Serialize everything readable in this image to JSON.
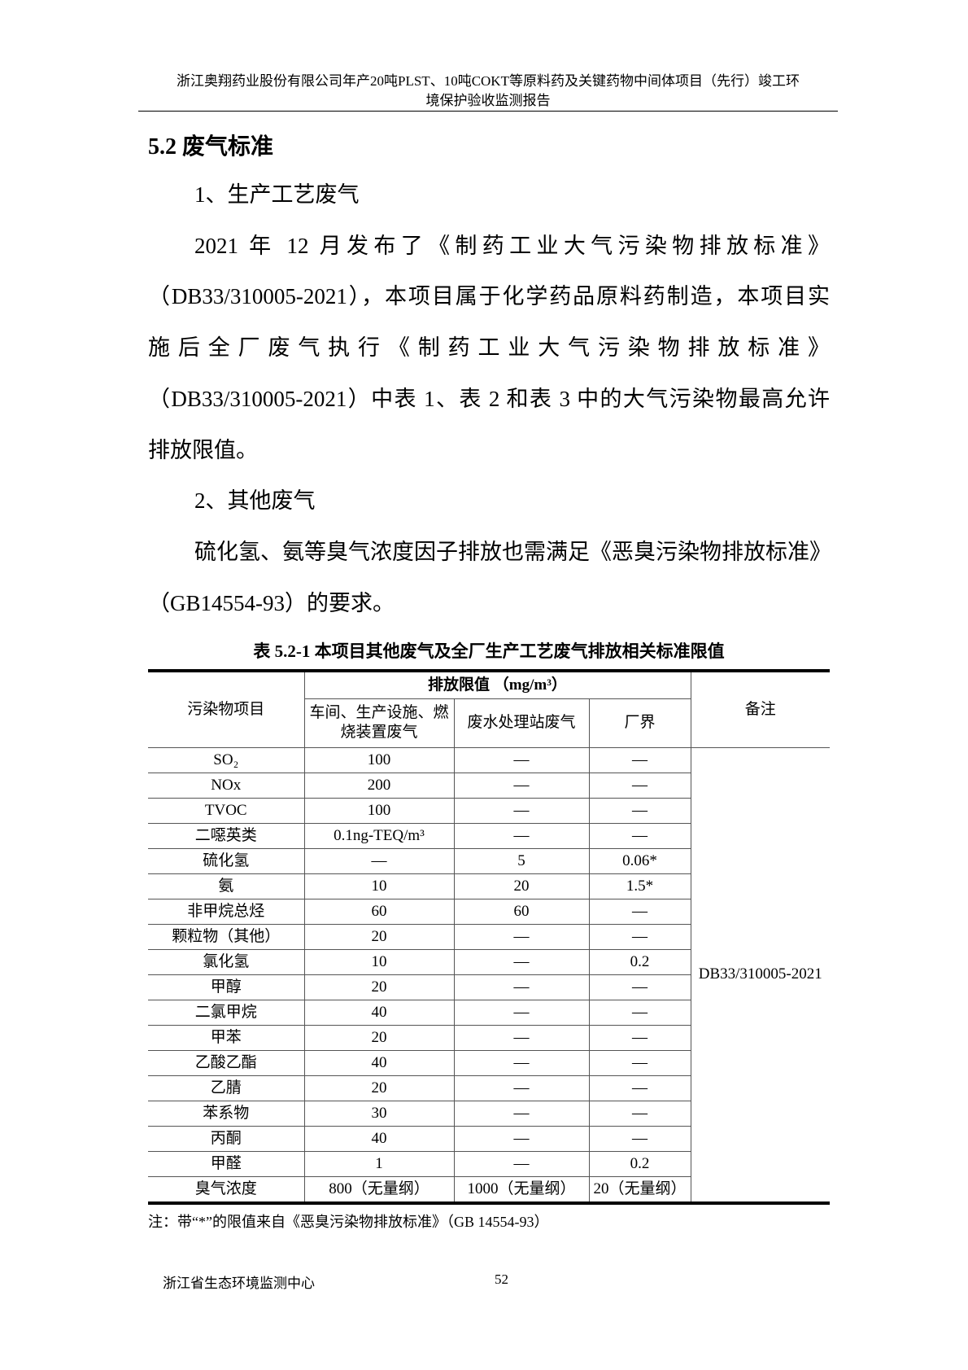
{
  "header": {
    "line1": "浙江奥翔药业股份有限公司年产20吨PLST、10吨COKT等原料药及关键药物中间体项目（先行）竣工环",
    "line2": "境保护验收监测报告"
  },
  "section_title": "5.2 废气标准",
  "paragraphs": [
    {
      "text": "1、生产工艺废气",
      "indent": true,
      "justify": false
    },
    {
      "text": "2021 年 12 月发布了《制药工业大气污染物排放标准》",
      "indent": true,
      "justify": true
    },
    {
      "text": "（DB33/310005-2021），本项目属于化学药品原料药制造，本项目实",
      "indent": false,
      "justify": true
    },
    {
      "text": "施后全厂废气执行《制药工业大气污染物排放标准》",
      "indent": false,
      "justify": true
    },
    {
      "text": "（DB33/310005-2021）中表 1、表 2 和表 3 中的大气污染物最高允许",
      "indent": false,
      "justify": true
    },
    {
      "text": "排放限值。",
      "indent": false,
      "justify": false
    },
    {
      "text": "2、其他废气",
      "indent": true,
      "justify": false
    },
    {
      "text": "硫化氢、氨等臭气浓度因子排放也需满足《恶臭污染物排放标准》",
      "indent": true,
      "justify": true
    },
    {
      "text": "（GB14554-93）的要求。",
      "indent": false,
      "justify": false
    }
  ],
  "table": {
    "caption": "表 5.2-1  本项目其他废气及全厂生产工艺废气排放相关标准限值",
    "col_pollutant": "污染物项目",
    "col_group": "排放限值  （mg/m³）",
    "col_workshop": "车间、生产设施、燃烧装置废气",
    "col_wastewater": "废水处理站废气",
    "col_boundary": "厂界",
    "col_remark": "备注",
    "remark_value": "DB33/310005-2021",
    "rows": [
      [
        "SO₂",
        "100",
        "—",
        "—"
      ],
      [
        "NOx",
        "200",
        "—",
        "—"
      ],
      [
        "TVOC",
        "100",
        "—",
        "—"
      ],
      [
        "二噁英类",
        "0.1ng-TEQ/m³",
        "—",
        "—"
      ],
      [
        "硫化氢",
        "—",
        "5",
        "0.06*"
      ],
      [
        "氨",
        "10",
        "20",
        "1.5*"
      ],
      [
        "非甲烷总烃",
        "60",
        "60",
        "—"
      ],
      [
        "颗粒物（其他）",
        "20",
        "—",
        "—"
      ],
      [
        "氯化氢",
        "10",
        "—",
        "0.2"
      ],
      [
        "甲醇",
        "20",
        "—",
        "—"
      ],
      [
        "二氯甲烷",
        "40",
        "—",
        "—"
      ],
      [
        "甲苯",
        "20",
        "—",
        "—"
      ],
      [
        "乙酸乙酯",
        "40",
        "—",
        "—"
      ],
      [
        "乙腈",
        "20",
        "—",
        "—"
      ],
      [
        "苯系物",
        "30",
        "—",
        "—"
      ],
      [
        "丙酮",
        "40",
        "—",
        "—"
      ],
      [
        "甲醛",
        "1",
        "—",
        "0.2"
      ],
      [
        "臭气浓度",
        "800（无量纲）",
        "1000（无量纲）",
        "20（无量纲）"
      ]
    ],
    "note": "注：带“*”的限值来自《恶臭污染物排放标准》（GB 14554-93）"
  },
  "footer": {
    "org": "浙江省生态环境监测中心",
    "page": "52"
  }
}
